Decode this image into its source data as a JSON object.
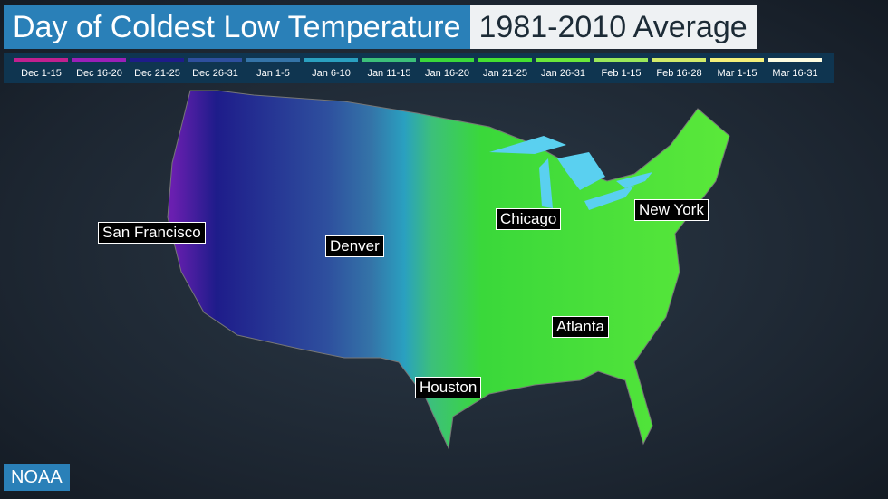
{
  "header": {
    "title": "Day of Coldest Low Temperature",
    "subtitle": "1981-2010 Average"
  },
  "legend": [
    {
      "label": "Dec 1-15",
      "color": "#c0208f"
    },
    {
      "label": "Dec 16-20",
      "color": "#9a1fb8"
    },
    {
      "label": "Dec 21-25",
      "color": "#1e1c8a"
    },
    {
      "label": "Dec 26-31",
      "color": "#2e4f9e"
    },
    {
      "label": "Jan 1-5",
      "color": "#3474a8"
    },
    {
      "label": "Jan 6-10",
      "color": "#2aa0c0"
    },
    {
      "label": "Jan 11-15",
      "color": "#3cc07a"
    },
    {
      "label": "Jan 16-20",
      "color": "#3ad83a"
    },
    {
      "label": "Jan 21-25",
      "color": "#44e030"
    },
    {
      "label": "Jan 26-31",
      "color": "#6ae83a"
    },
    {
      "label": "Feb 1-15",
      "color": "#9ae85a"
    },
    {
      "label": "Feb 16-28",
      "color": "#d2ec6a"
    },
    {
      "label": "Mar 1-15",
      "color": "#f4f07a"
    },
    {
      "label": "Mar 16-31",
      "color": "#fdfce0"
    }
  ],
  "cities": [
    "San Francisco",
    "Denver",
    "Chicago",
    "New York",
    "Atlanta",
    "Houston"
  ],
  "source": "NOAA"
}
